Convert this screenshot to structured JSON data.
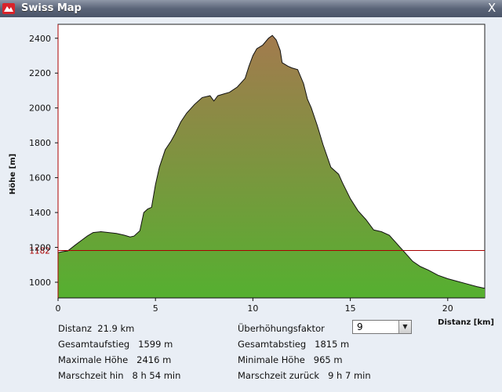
{
  "window": {
    "title": "Swiss Map",
    "close_glyph": "X",
    "icon": "swiss-map-app-icon"
  },
  "chart_data": {
    "type": "area",
    "xlabel": "Distanz [km]",
    "ylabel": "Höhe [m]",
    "xlim": [
      0,
      21.9
    ],
    "ylim": [
      910,
      2480
    ],
    "x_ticks": [
      0,
      5,
      10,
      15,
      20
    ],
    "y_ticks": [
      1000,
      1200,
      1400,
      1600,
      1800,
      2000,
      2200,
      2400
    ],
    "reference_line": {
      "value": 1182,
      "label": "1182",
      "color": "#aa0000"
    },
    "fill_top_color": "#a37a4e",
    "fill_bottom_color": "#55b030",
    "series": [
      {
        "x": [
          0,
          0.2,
          0.5,
          0.9,
          1.2,
          1.5,
          1.8,
          2.2,
          2.6,
          3.0,
          3.4,
          3.7,
          3.9,
          4.2,
          4.4,
          4.6,
          4.8,
          5.0,
          5.2,
          5.5,
          5.8,
          6.0,
          6.3,
          6.6,
          7.0,
          7.4,
          7.8,
          8.0,
          8.2,
          8.5,
          8.8,
          9.2,
          9.6,
          9.8,
          10.0,
          10.2,
          10.5,
          10.8,
          11.0,
          11.2,
          11.4,
          11.5,
          11.8,
          12.0,
          12.3,
          12.6,
          12.8,
          13.0,
          13.3,
          13.6,
          14.0,
          14.4,
          14.6,
          15.0,
          15.4,
          15.8,
          16.2,
          16.6,
          17.0,
          17.4,
          17.8,
          18.2,
          18.6,
          19.0,
          19.5,
          20.0,
          20.5,
          21.0,
          21.5,
          21.9
        ],
        "y": [
          1170,
          1175,
          1180,
          1215,
          1240,
          1265,
          1285,
          1290,
          1285,
          1280,
          1270,
          1260,
          1265,
          1295,
          1400,
          1420,
          1430,
          1560,
          1660,
          1760,
          1810,
          1850,
          1920,
          1970,
          2020,
          2060,
          2070,
          2040,
          2070,
          2080,
          2090,
          2120,
          2170,
          2240,
          2300,
          2340,
          2360,
          2400,
          2416,
          2390,
          2330,
          2260,
          2240,
          2230,
          2220,
          2140,
          2050,
          2000,
          1900,
          1790,
          1660,
          1620,
          1570,
          1480,
          1410,
          1360,
          1300,
          1290,
          1270,
          1220,
          1170,
          1120,
          1090,
          1070,
          1040,
          1020,
          1005,
          990,
          975,
          965
        ]
      }
    ]
  },
  "stats": {
    "distance": {
      "label": "Distanz",
      "value": "21.9 km"
    },
    "ascent": {
      "label": "Gesamtaufstieg",
      "value": "1599 m"
    },
    "max_height": {
      "label": "Maximale Höhe",
      "value": "2416 m"
    },
    "time_forward": {
      "label": "Marschzeit hin",
      "value": "8 h 54 min"
    },
    "exaggeration": {
      "label": "Überhöhungsfaktor",
      "value": "9"
    },
    "descent": {
      "label": "Gesamtabstieg",
      "value": "1815 m"
    },
    "min_height": {
      "label": "Minimale Höhe",
      "value": "965 m"
    },
    "time_back": {
      "label": "Marschzeit zurück",
      "value": "9 h 7 min"
    }
  }
}
